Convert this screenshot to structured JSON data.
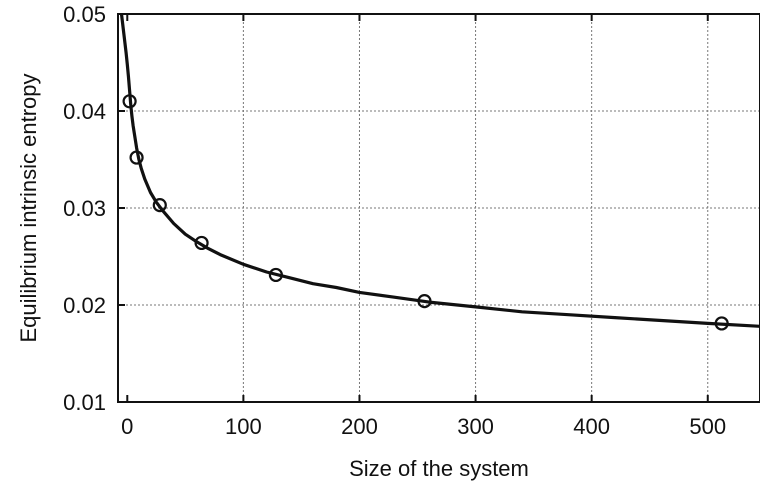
{
  "chart_data": {
    "type": "scatter",
    "title": "",
    "xlabel": "Size of the system",
    "ylabel": "Equilibrium intrinsic entropy",
    "xlim": [
      -8,
      545
    ],
    "ylim": [
      0.01,
      0.05
    ],
    "x_ticks": [
      0,
      100,
      200,
      300,
      400,
      500
    ],
    "x_tick_labels": [
      "0",
      "100",
      "200",
      "300",
      "400",
      "500"
    ],
    "y_ticks": [
      0.01,
      0.02,
      0.03,
      0.04,
      0.05
    ],
    "y_tick_labels": [
      "0.01",
      "0.02",
      "0.03",
      "0.04",
      "0.05"
    ],
    "grid": true,
    "series": [
      {
        "kind": "points",
        "marker": "open-circle",
        "x": [
          2,
          8,
          28,
          64,
          128,
          256,
          512
        ],
        "y": [
          0.041,
          0.0352,
          0.0303,
          0.0264,
          0.0231,
          0.0204,
          0.0181
        ]
      },
      {
        "kind": "line",
        "x": [
          -5,
          -3,
          -1,
          0,
          1,
          2,
          3,
          4,
          5,
          6,
          8,
          10,
          12,
          15,
          20,
          25,
          30,
          40,
          50,
          60,
          70,
          80,
          100,
          120,
          140,
          160,
          180,
          200,
          230,
          260,
          300,
          340,
          380,
          420,
          460,
          500,
          545
        ],
        "y": [
          0.05,
          0.048,
          0.046,
          0.0448,
          0.0436,
          0.0421,
          0.0406,
          0.0395,
          0.0385,
          0.0377,
          0.0362,
          0.035,
          0.0341,
          0.033,
          0.0316,
          0.0306,
          0.0298,
          0.0284,
          0.0273,
          0.0265,
          0.0258,
          0.0252,
          0.0242,
          0.0234,
          0.0228,
          0.0222,
          0.0218,
          0.0213,
          0.0208,
          0.0203,
          0.0198,
          0.0193,
          0.019,
          0.0187,
          0.0184,
          0.0181,
          0.0178
        ]
      }
    ]
  }
}
